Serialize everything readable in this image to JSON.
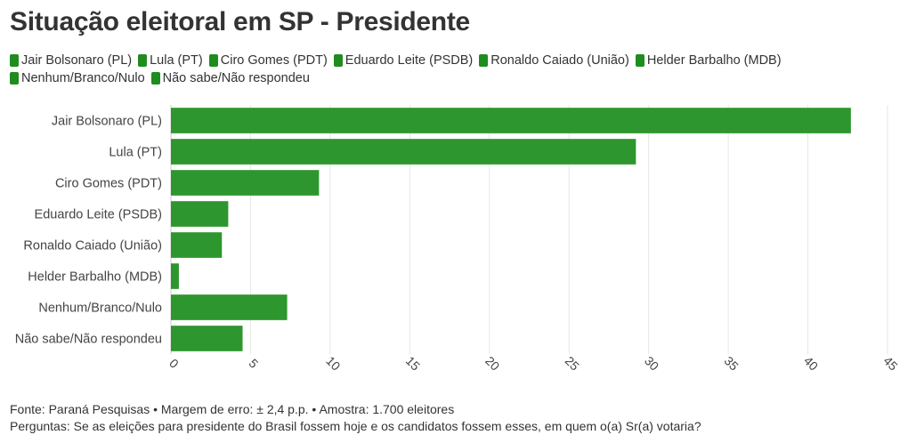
{
  "title": "Situação eleitoral em SP - Presidente",
  "accent_color": "#2e962e",
  "chart_data": {
    "type": "bar",
    "orientation": "horizontal",
    "categories": [
      "Jair Bolsonaro (PL)",
      "Lula (PT)",
      "Ciro Gomes (PDT)",
      "Eduardo Leite (PSDB)",
      "Ronaldo Caiado (União)",
      "Helder Barbalho (MDB)",
      "Nenhum/Branco/Nulo",
      "Não sabe/Não respondeu"
    ],
    "values": [
      42.7,
      29.2,
      9.3,
      3.6,
      3.2,
      0.5,
      7.3,
      4.5
    ],
    "xlim": [
      0,
      45
    ],
    "xticks": [
      "0",
      "5",
      "10",
      "15",
      "20",
      "25",
      "30",
      "35",
      "40",
      "45"
    ],
    "xlabel": "",
    "ylabel": "",
    "grid": true,
    "legend_position": "top"
  },
  "legend": [
    {
      "label": "Jair Bolsonaro (PL)",
      "color": "#1f8c1f"
    },
    {
      "label": "Lula (PT)",
      "color": "#1f8c1f"
    },
    {
      "label": "Ciro Gomes (PDT)",
      "color": "#1f8c1f"
    },
    {
      "label": "Eduardo Leite (PSDB)",
      "color": "#1f8c1f"
    },
    {
      "label": "Ronaldo Caiado (União)",
      "color": "#1f8c1f"
    },
    {
      "label": "Helder Barbalho (MDB)",
      "color": "#1f8c1f"
    },
    {
      "label": "Nenhum/Branco/Nulo",
      "color": "#1f8c1f"
    },
    {
      "label": "Não sabe/Não respondeu",
      "color": "#1f8c1f"
    }
  ],
  "footer": {
    "source": "Fonte: Paraná Pesquisas • Margem de erro: ± 2,4 p.p. • Amostra: 1.700 eleitores",
    "question": "Perguntas: Se as eleições para presidente do Brasil fossem hoje e os candidatos fossem esses, em quem o(a) Sr(a) votaria?"
  }
}
